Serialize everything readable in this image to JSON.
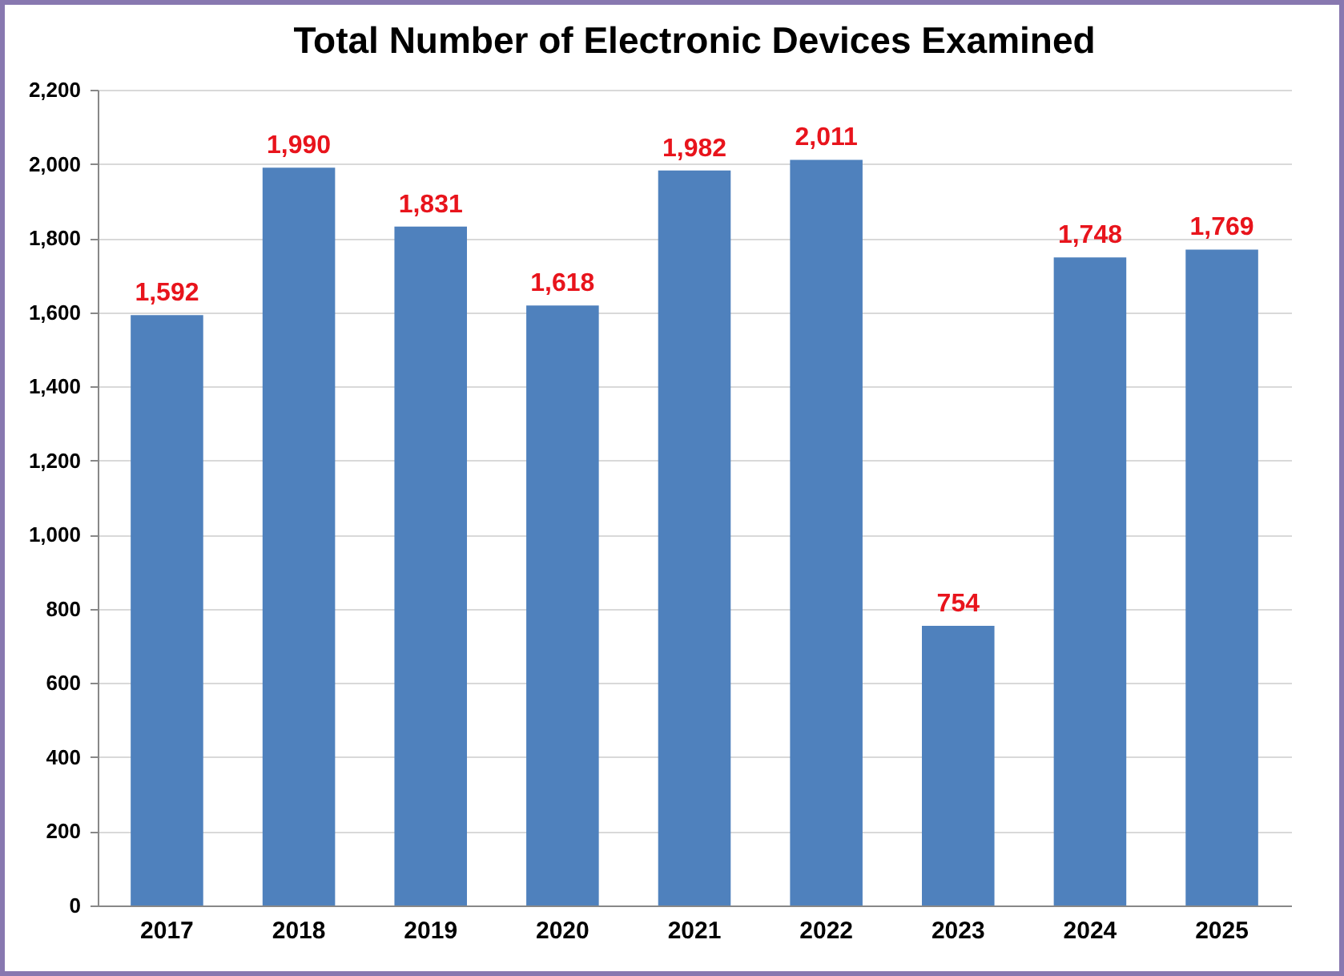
{
  "chart_data": {
    "type": "bar",
    "title": "Total Number of Electronic Devices Examined",
    "categories": [
      "2017",
      "2018",
      "2019",
      "2020",
      "2021",
      "2022",
      "2023",
      "2024",
      "2025"
    ],
    "values": [
      1592,
      1990,
      1831,
      1618,
      1982,
      2011,
      754,
      1748,
      1769
    ],
    "value_labels": [
      "1,592",
      "1,990",
      "1,831",
      "1,618",
      "1,982",
      "2,011",
      "754",
      "1,748",
      "1,769"
    ],
    "color": "#4f81bd",
    "ylim": [
      0,
      2200
    ],
    "yticks": [
      0,
      200,
      400,
      600,
      800,
      {
        "value": 1000,
        "label": "1,000"
      },
      {
        "value": 1200,
        "label": "1,200"
      },
      {
        "value": 1400,
        "label": "1,400"
      },
      {
        "value": 1600,
        "label": "1,600"
      },
      {
        "value": 1800,
        "label": "1,800"
      },
      {
        "value": 2000,
        "label": "2,000"
      },
      {
        "value": 2200,
        "label": "2,200"
      }
    ],
    "grid": "y"
  }
}
